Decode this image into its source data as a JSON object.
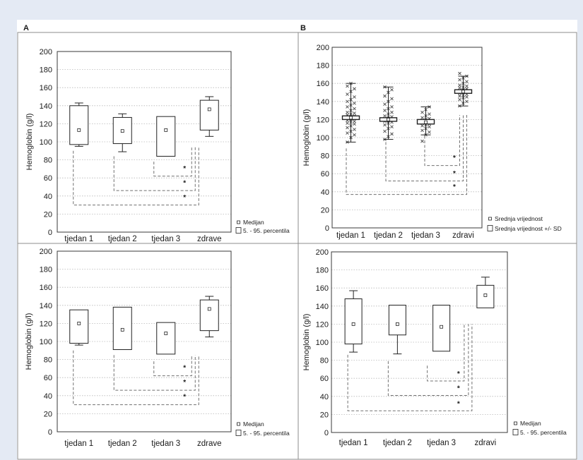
{
  "chart_data": [
    {
      "type": "box",
      "panel_label": "A",
      "ylabel": "Hemoglobin (g/l)",
      "ylim": [
        0,
        200
      ],
      "yticks": [
        0,
        20,
        40,
        60,
        80,
        100,
        120,
        140,
        160,
        180,
        200
      ],
      "grid": true,
      "categories": [
        "tjedan 1",
        "tjedan 2",
        "tjedan 3",
        "zdrave"
      ],
      "boxes": [
        {
          "median": 113,
          "box": [
            97,
            140
          ],
          "whisker": [
            95,
            143
          ]
        },
        {
          "median": 112,
          "box": [
            98,
            127
          ],
          "whisker": [
            89,
            131
          ]
        },
        {
          "median": 113,
          "box": [
            84,
            128
          ],
          "whisker": [
            84,
            128
          ]
        },
        {
          "median": 136,
          "box": [
            113,
            146
          ],
          "whisker": [
            106,
            150
          ]
        }
      ],
      "comparisons": [
        {
          "from": "tjedan 3",
          "to": "zdrave",
          "label": "*"
        },
        {
          "from": "tjedan 2",
          "to": "zdrave",
          "label": "*"
        },
        {
          "from": "tjedan 1",
          "to": "zdrave",
          "label": "*"
        }
      ],
      "legend": [
        {
          "marker": "small-square",
          "label": "Medijan"
        },
        {
          "marker": "box",
          "label": "5. - 95. percentila"
        }
      ],
      "legend_position": "bottom-right"
    },
    {
      "type": "box",
      "panel_label": "B",
      "ylabel": "Hemoglobin (g/l)",
      "ylim": [
        0,
        200
      ],
      "yticks": [
        0,
        20,
        40,
        60,
        80,
        100,
        120,
        140,
        160,
        180,
        200
      ],
      "grid": true,
      "categories": [
        "tjedan 1",
        "tjedan 2",
        "tjedan 3",
        "zdravi"
      ],
      "boxes": [
        {
          "mean": 122,
          "box": [
            120,
            124
          ],
          "whisker": [
            95,
            160
          ],
          "points": [
            95,
            100,
            103,
            105,
            107,
            109,
            111,
            113,
            115,
            116,
            117,
            118,
            119,
            120,
            121,
            122,
            123,
            124,
            125,
            126,
            127,
            128,
            130,
            132,
            134,
            136,
            138,
            140,
            142,
            145,
            148,
            151,
            154,
            157,
            160
          ]
        },
        {
          "mean": 120,
          "box": [
            118,
            122
          ],
          "whisker": [
            98,
            156
          ],
          "points": [
            98,
            101,
            104,
            107,
            110,
            112,
            114,
            116,
            117,
            118,
            119,
            120,
            121,
            122,
            123,
            124,
            126,
            128,
            130,
            132,
            134,
            137,
            140,
            143,
            146,
            150,
            153,
            156
          ]
        },
        {
          "mean": 117,
          "box": [
            115,
            120
          ],
          "whisker": [
            103,
            134
          ],
          "points": [
            96,
            103,
            106,
            108,
            110,
            112,
            113,
            114,
            115,
            116,
            117,
            118,
            119,
            120,
            121,
            122,
            124,
            126,
            128,
            131,
            134
          ]
        },
        {
          "mean": 151,
          "box": [
            149,
            153
          ],
          "whisker": [
            135,
            168
          ],
          "points": [
            135,
            138,
            140,
            142,
            144,
            145,
            146,
            147,
            148,
            149,
            150,
            151,
            152,
            153,
            154,
            155,
            156,
            157,
            158,
            160,
            162,
            164,
            166,
            168,
            171
          ]
        }
      ],
      "comparisons": [
        {
          "from": "tjedan 3",
          "to": "zdravi",
          "label": "*"
        },
        {
          "from": "tjedan 2",
          "to": "zdravi",
          "label": "*"
        },
        {
          "from": "tjedan 1",
          "to": "zdravi",
          "label": "*"
        }
      ],
      "legend": [
        {
          "marker": "small-square",
          "label": "Srednja vrijednost"
        },
        {
          "marker": "box",
          "label": "Srednja vrijednost +/- SD"
        }
      ],
      "legend_position": "bottom-right"
    },
    {
      "type": "box",
      "ylabel": "Hemoglobin (g/l)",
      "ylim": [
        0,
        200
      ],
      "yticks": [
        0,
        20,
        40,
        60,
        80,
        100,
        120,
        140,
        160,
        180,
        200
      ],
      "grid": true,
      "categories": [
        "tjedan 1",
        "tjedan 2",
        "tjedan 3",
        "zdrave"
      ],
      "boxes": [
        {
          "median": 120,
          "box": [
            98,
            135
          ],
          "whisker": [
            96,
            135
          ]
        },
        {
          "median": 113,
          "box": [
            91,
            138
          ],
          "whisker": [
            91,
            138
          ]
        },
        {
          "median": 109,
          "box": [
            86,
            121
          ],
          "whisker": [
            86,
            121
          ]
        },
        {
          "median": 136,
          "box": [
            112,
            146
          ],
          "whisker": [
            105,
            150
          ]
        }
      ],
      "comparisons": [
        {
          "from": "tjedan 3",
          "to": "zdrave",
          "label": "*"
        },
        {
          "from": "tjedan 2",
          "to": "zdrave",
          "label": "*"
        },
        {
          "from": "tjedan 1",
          "to": "zdrave",
          "label": "*"
        }
      ],
      "legend": [
        {
          "marker": "small-square",
          "label": "Medijan"
        },
        {
          "marker": "box",
          "label": "5. - 95. percentila"
        }
      ],
      "legend_position": "bottom-right"
    },
    {
      "type": "box",
      "ylabel": "Hemoglobin (g/l)",
      "ylim": [
        0,
        200
      ],
      "yticks": [
        0,
        20,
        40,
        60,
        80,
        100,
        120,
        140,
        160,
        180,
        200
      ],
      "grid": true,
      "categories": [
        "tjedan 1",
        "tjedan 2",
        "tjedan 3",
        "zdravi"
      ],
      "boxes": [
        {
          "median": 120,
          "box": [
            98,
            148
          ],
          "whisker": [
            89,
            157
          ]
        },
        {
          "median": 120,
          "box": [
            108,
            141
          ],
          "whisker": [
            87,
            141
          ]
        },
        {
          "median": 117,
          "box": [
            90,
            141
          ],
          "whisker": [
            90,
            141
          ]
        },
        {
          "median": 152,
          "box": [
            138,
            163
          ],
          "whisker": [
            138,
            172
          ]
        }
      ],
      "comparisons": [
        {
          "from": "tjedan 3",
          "to": "zdravi",
          "label": "*"
        },
        {
          "from": "tjedan 2",
          "to": "zdravi",
          "label": "*"
        },
        {
          "from": "tjedan 1",
          "to": "zdravi",
          "label": "*"
        }
      ],
      "legend": [
        {
          "marker": "small-square",
          "label": "Medijan"
        },
        {
          "marker": "box",
          "label": "5. - 95. percentila"
        }
      ],
      "legend_position": "bottom-right"
    }
  ]
}
